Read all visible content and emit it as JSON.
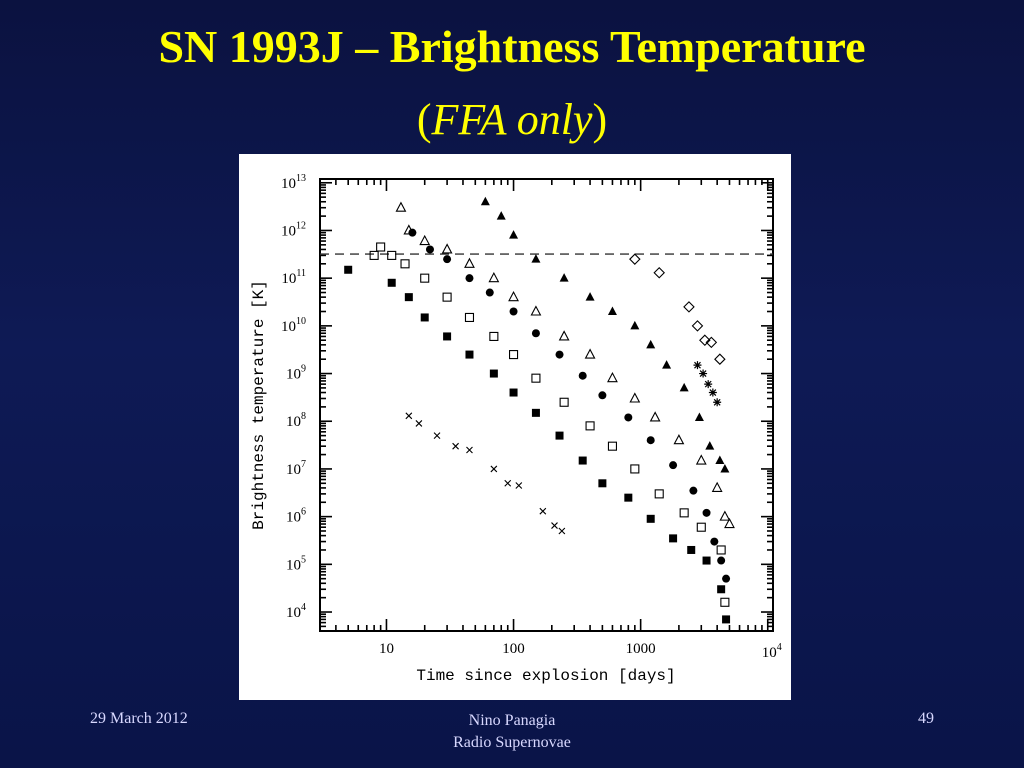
{
  "slide": {
    "title": "SN 1993J – Brightness Temperature",
    "subtitle_open": "(",
    "subtitle_italic": "FFA only",
    "subtitle_close": ")",
    "footer_date": "29 March 2012",
    "footer_author": "Nino Panagia",
    "footer_topic": "Radio Supernovae",
    "page_number": "49"
  },
  "colors": {
    "title": "#ffff00",
    "background": "#0e1a55",
    "footer": "#d8d8ff"
  },
  "chart_data": {
    "type": "scatter",
    "title": "",
    "xlabel": "Time since explosion [days]",
    "ylabel": "Brightness temperature [K]",
    "x_scale": "log",
    "y_scale": "log",
    "xlim": [
      3,
      11000
    ],
    "ylim": [
      4000,
      12000000000000
    ],
    "x_ticks": [
      {
        "value": 10,
        "label": "10"
      },
      {
        "value": 100,
        "label": "100"
      },
      {
        "value": 1000,
        "label": "1000"
      },
      {
        "value": 10000,
        "label": "10",
        "sup": "4"
      }
    ],
    "y_ticks": [
      {
        "value": 10000,
        "label": "10",
        "sup": "4"
      },
      {
        "value": 100000,
        "label": "10",
        "sup": "5"
      },
      {
        "value": 1000000,
        "label": "10",
        "sup": "6"
      },
      {
        "value": 10000000,
        "label": "10",
        "sup": "7"
      },
      {
        "value": 100000000,
        "label": "10",
        "sup": "8"
      },
      {
        "value": 1000000000,
        "label": "10",
        "sup": "9"
      },
      {
        "value": 10000000000,
        "label": "10",
        "sup": "10"
      },
      {
        "value": 100000000000,
        "label": "10",
        "sup": "11"
      },
      {
        "value": 1000000000000,
        "label": "10",
        "sup": "12"
      },
      {
        "value": 10000000000000,
        "label": "10",
        "sup": "13"
      }
    ],
    "reference_line": {
      "y": 320000000000,
      "style": "dashed"
    },
    "grid": false,
    "series": [
      {
        "marker": "filled-triangle",
        "points": [
          [
            60,
            4000000000000.0
          ],
          [
            80,
            2000000000000.0
          ],
          [
            100,
            800000000000.0
          ],
          [
            150,
            250000000000.0
          ],
          [
            250,
            100000000000.0
          ],
          [
            400,
            40000000000.0
          ],
          [
            600,
            20000000000.0
          ],
          [
            900,
            10000000000.0
          ],
          [
            1200,
            4000000000.0
          ],
          [
            1600,
            1500000000.0
          ],
          [
            2200,
            500000000.0
          ],
          [
            2900,
            120000000.0
          ],
          [
            3500,
            30000000.0
          ],
          [
            4200,
            15000000.0
          ],
          [
            4600,
            10000000.0
          ]
        ]
      },
      {
        "marker": "open-triangle",
        "points": [
          [
            13,
            3000000000000.0
          ],
          [
            15,
            1000000000000.0
          ],
          [
            20,
            600000000000.0
          ],
          [
            30,
            400000000000.0
          ],
          [
            45,
            200000000000.0
          ],
          [
            70,
            100000000000.0
          ],
          [
            100,
            40000000000.0
          ],
          [
            150,
            20000000000.0
          ],
          [
            250,
            6000000000.0
          ],
          [
            400,
            2500000000.0
          ],
          [
            600,
            800000000.0
          ],
          [
            900,
            300000000.0
          ],
          [
            1300,
            120000000.0
          ],
          [
            2000,
            40000000.0
          ],
          [
            3000,
            15000000.0
          ],
          [
            4000,
            4000000.0
          ],
          [
            4600,
            1000000.0
          ],
          [
            5000,
            700000.0
          ]
        ]
      },
      {
        "marker": "filled-circle",
        "points": [
          [
            16,
            900000000000.0
          ],
          [
            22,
            400000000000.0
          ],
          [
            30,
            250000000000.0
          ],
          [
            45,
            100000000000.0
          ],
          [
            65,
            50000000000.0
          ],
          [
            100,
            20000000000.0
          ],
          [
            150,
            7000000000.0
          ],
          [
            230,
            2500000000.0
          ],
          [
            350,
            900000000.0
          ],
          [
            500,
            350000000.0
          ],
          [
            800,
            120000000.0
          ],
          [
            1200,
            40000000.0
          ],
          [
            1800,
            12000000.0
          ],
          [
            2600,
            3500000.0
          ],
          [
            3300,
            1200000.0
          ],
          [
            3800,
            300000.0
          ],
          [
            4300,
            120000.0
          ],
          [
            4700,
            50000.0
          ]
        ]
      },
      {
        "marker": "open-square",
        "points": [
          [
            8,
            300000000000.0
          ],
          [
            9,
            450000000000.0
          ],
          [
            11,
            300000000000.0
          ],
          [
            14,
            200000000000.0
          ],
          [
            20,
            100000000000.0
          ],
          [
            30,
            40000000000.0
          ],
          [
            45,
            15000000000.0
          ],
          [
            70,
            6000000000.0
          ],
          [
            100,
            2500000000.0
          ],
          [
            150,
            800000000.0
          ],
          [
            250,
            250000000.0
          ],
          [
            400,
            80000000.0
          ],
          [
            600,
            30000000.0
          ],
          [
            900,
            10000000.0
          ],
          [
            1400,
            3000000.0
          ],
          [
            2200,
            1200000.0
          ],
          [
            3000,
            600000.0
          ],
          [
            4300,
            200000.0
          ],
          [
            4600,
            16000.0
          ]
        ]
      },
      {
        "marker": "filled-square",
        "points": [
          [
            5,
            150000000000.0
          ],
          [
            11,
            80000000000.0
          ],
          [
            15,
            40000000000.0
          ],
          [
            20,
            15000000000.0
          ],
          [
            30,
            6000000000.0
          ],
          [
            45,
            2500000000.0
          ],
          [
            70,
            1000000000.0
          ],
          [
            100,
            400000000.0
          ],
          [
            150,
            150000000.0
          ],
          [
            230,
            50000000.0
          ],
          [
            350,
            15000000.0
          ],
          [
            500,
            5000000.0
          ],
          [
            800,
            2500000.0
          ],
          [
            1200,
            900000.0
          ],
          [
            1800,
            350000.0
          ],
          [
            2500,
            200000.0
          ],
          [
            3300,
            120000.0
          ],
          [
            4300,
            30000.0
          ],
          [
            4700,
            7000.0
          ]
        ]
      },
      {
        "marker": "open-diamond",
        "points": [
          [
            900,
            250000000000.0
          ],
          [
            1400,
            130000000000.0
          ],
          [
            2400,
            25000000000.0
          ],
          [
            2800,
            10000000000.0
          ],
          [
            3200,
            5000000000.0
          ],
          [
            3600,
            4500000000.0
          ],
          [
            4200,
            2000000000.0
          ]
        ]
      },
      {
        "marker": "star",
        "points": [
          [
            2800,
            1500000000.0
          ],
          [
            3100,
            1000000000.0
          ],
          [
            3400,
            600000000.0
          ],
          [
            3700,
            400000000.0
          ],
          [
            4000,
            250000000.0
          ]
        ]
      },
      {
        "marker": "cross",
        "points": [
          [
            15,
            130000000.0
          ],
          [
            18,
            90000000.0
          ],
          [
            25,
            50000000.0
          ],
          [
            35,
            30000000.0
          ],
          [
            45,
            25000000.0
          ],
          [
            70,
            10000000.0
          ],
          [
            90,
            5000000.0
          ],
          [
            110,
            4500000.0
          ],
          [
            170,
            1300000.0
          ],
          [
            210,
            650000.0
          ],
          [
            240,
            500000.0
          ]
        ]
      }
    ]
  }
}
